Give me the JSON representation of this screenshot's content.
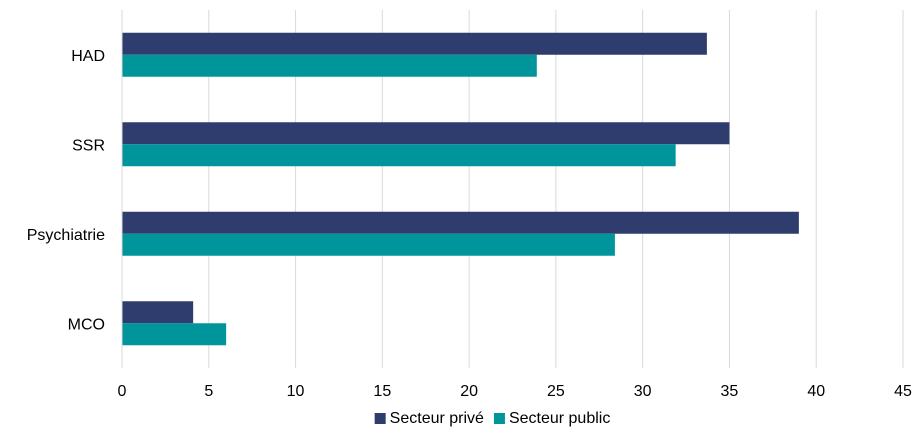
{
  "chart_data": {
    "type": "bar",
    "orientation": "horizontal",
    "categories": [
      "HAD",
      "SSR",
      "Psychiatrie",
      "MCO"
    ],
    "series": [
      {
        "name": "Secteur privé",
        "values": [
          33.7,
          35.0,
          39.0,
          4.1
        ],
        "color": "#2e3d6e"
      },
      {
        "name": "Secteur public",
        "values": [
          23.9,
          31.9,
          28.4,
          6.0
        ],
        "color": "#00959a"
      }
    ],
    "xlim": [
      0,
      45
    ],
    "xticks": [
      0,
      5,
      10,
      15,
      20,
      25,
      30,
      35,
      40,
      45
    ],
    "title": "",
    "xlabel": "",
    "ylabel": "",
    "grid": "vertical",
    "legend_position": "bottom"
  }
}
